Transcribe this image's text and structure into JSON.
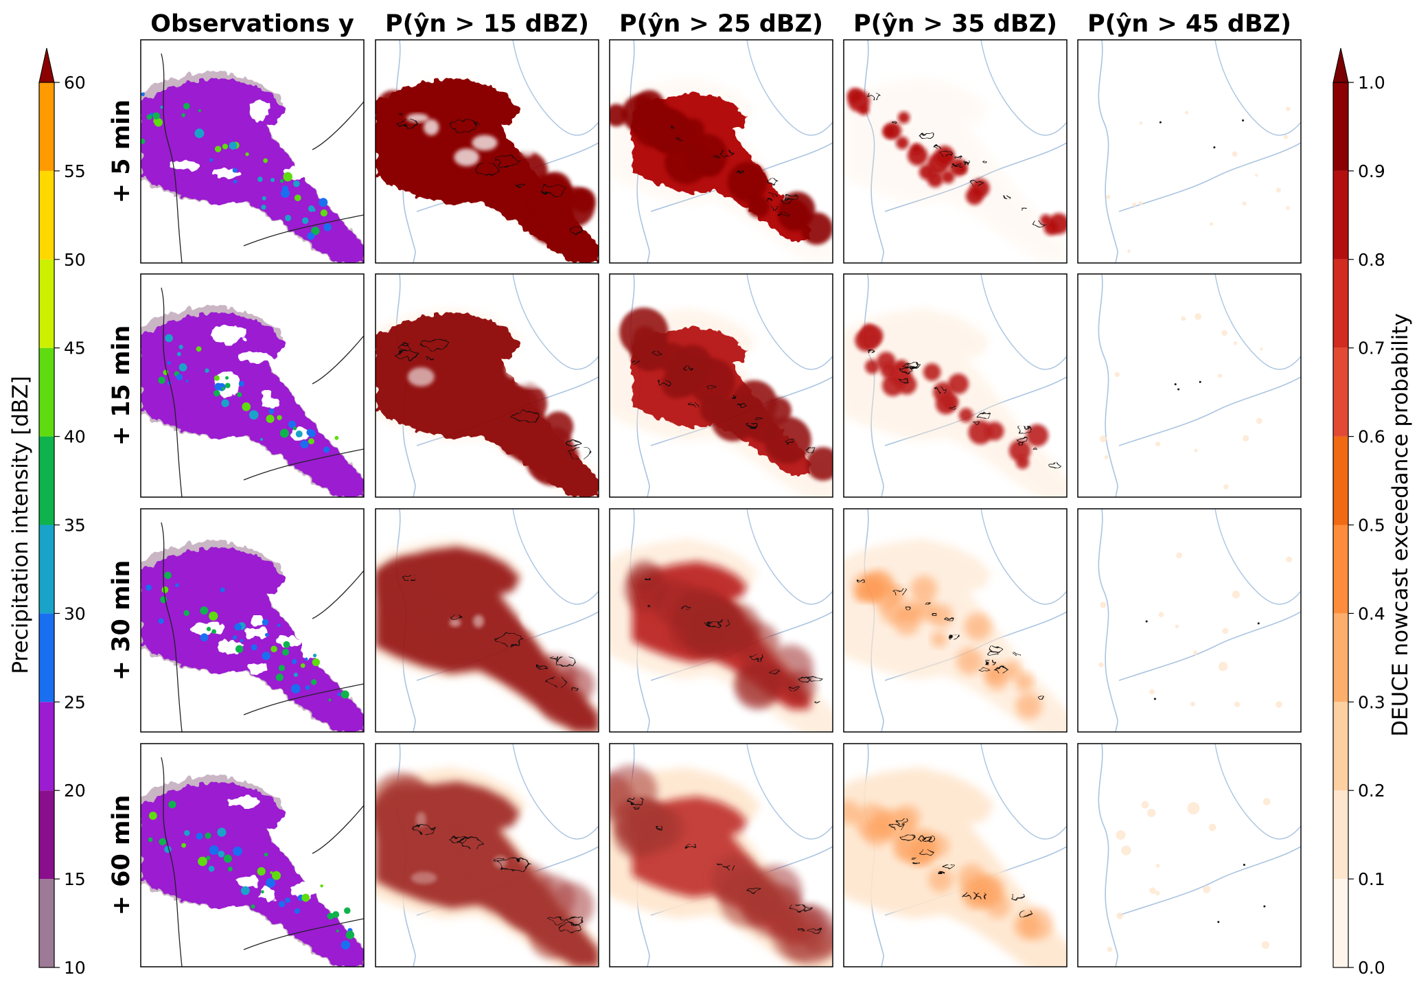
{
  "figure": {
    "column_titles": [
      "Observations y",
      "P(ŷn > 15 dBZ)",
      "P(ŷn > 25 dBZ)",
      "P(ŷn > 35 dBZ)",
      "P(ŷn > 45 dBZ)"
    ],
    "column_titles_subscript": [
      "",
      "n",
      "n",
      "n",
      "n"
    ],
    "row_labels": [
      "+ 5 min",
      "+ 15 min",
      "+ 30 min",
      "+ 60 min"
    ]
  },
  "chart_data": [
    {
      "type": "heatmap",
      "name": "observations",
      "colorbar_label": "Precipitation intensity [dBZ]",
      "levels": [
        10,
        15,
        20,
        25,
        30,
        35,
        40,
        45,
        50,
        55,
        60
      ],
      "tick_labels": [
        "10",
        "15",
        "20",
        "25",
        "30",
        "35",
        "40",
        "45",
        "50",
        "55",
        "60"
      ],
      "colors": [
        "#9d7a95",
        "#8a0f8c",
        "#9b1cd1",
        "#1a6ff0",
        "#1aa3c8",
        "#0fb34c",
        "#5fdc10",
        "#cdf000",
        "#ffd800",
        "#ff9a00",
        "#ff5a00",
        "#d20f0f"
      ],
      "extend": "max",
      "extend_color": "#8b0000"
    },
    {
      "type": "heatmap",
      "name": "exceedance-probability",
      "colorbar_label": "DEUCE nowcast exceedance probability",
      "levels": [
        0.0,
        0.1,
        0.2,
        0.3,
        0.4,
        0.5,
        0.6,
        0.7,
        0.8,
        0.9,
        1.0
      ],
      "tick_labels": [
        "0.0",
        "0.1",
        "0.2",
        "0.3",
        "0.4",
        "0.5",
        "0.6",
        "0.7",
        "0.8",
        "0.9",
        "1.0"
      ],
      "colors": [
        "#fff5eb",
        "#fee6ce",
        "#fdd0a2",
        "#fdae6b",
        "#fd8d3c",
        "#f16913",
        "#e24a33",
        "#d22b1f",
        "#b40f0f",
        "#8b0000"
      ],
      "extend": "max",
      "extend_color": "#7a0000"
    }
  ],
  "colors": {
    "border": "#000000",
    "coastline": "#aac4e0",
    "contour": "#111111"
  }
}
